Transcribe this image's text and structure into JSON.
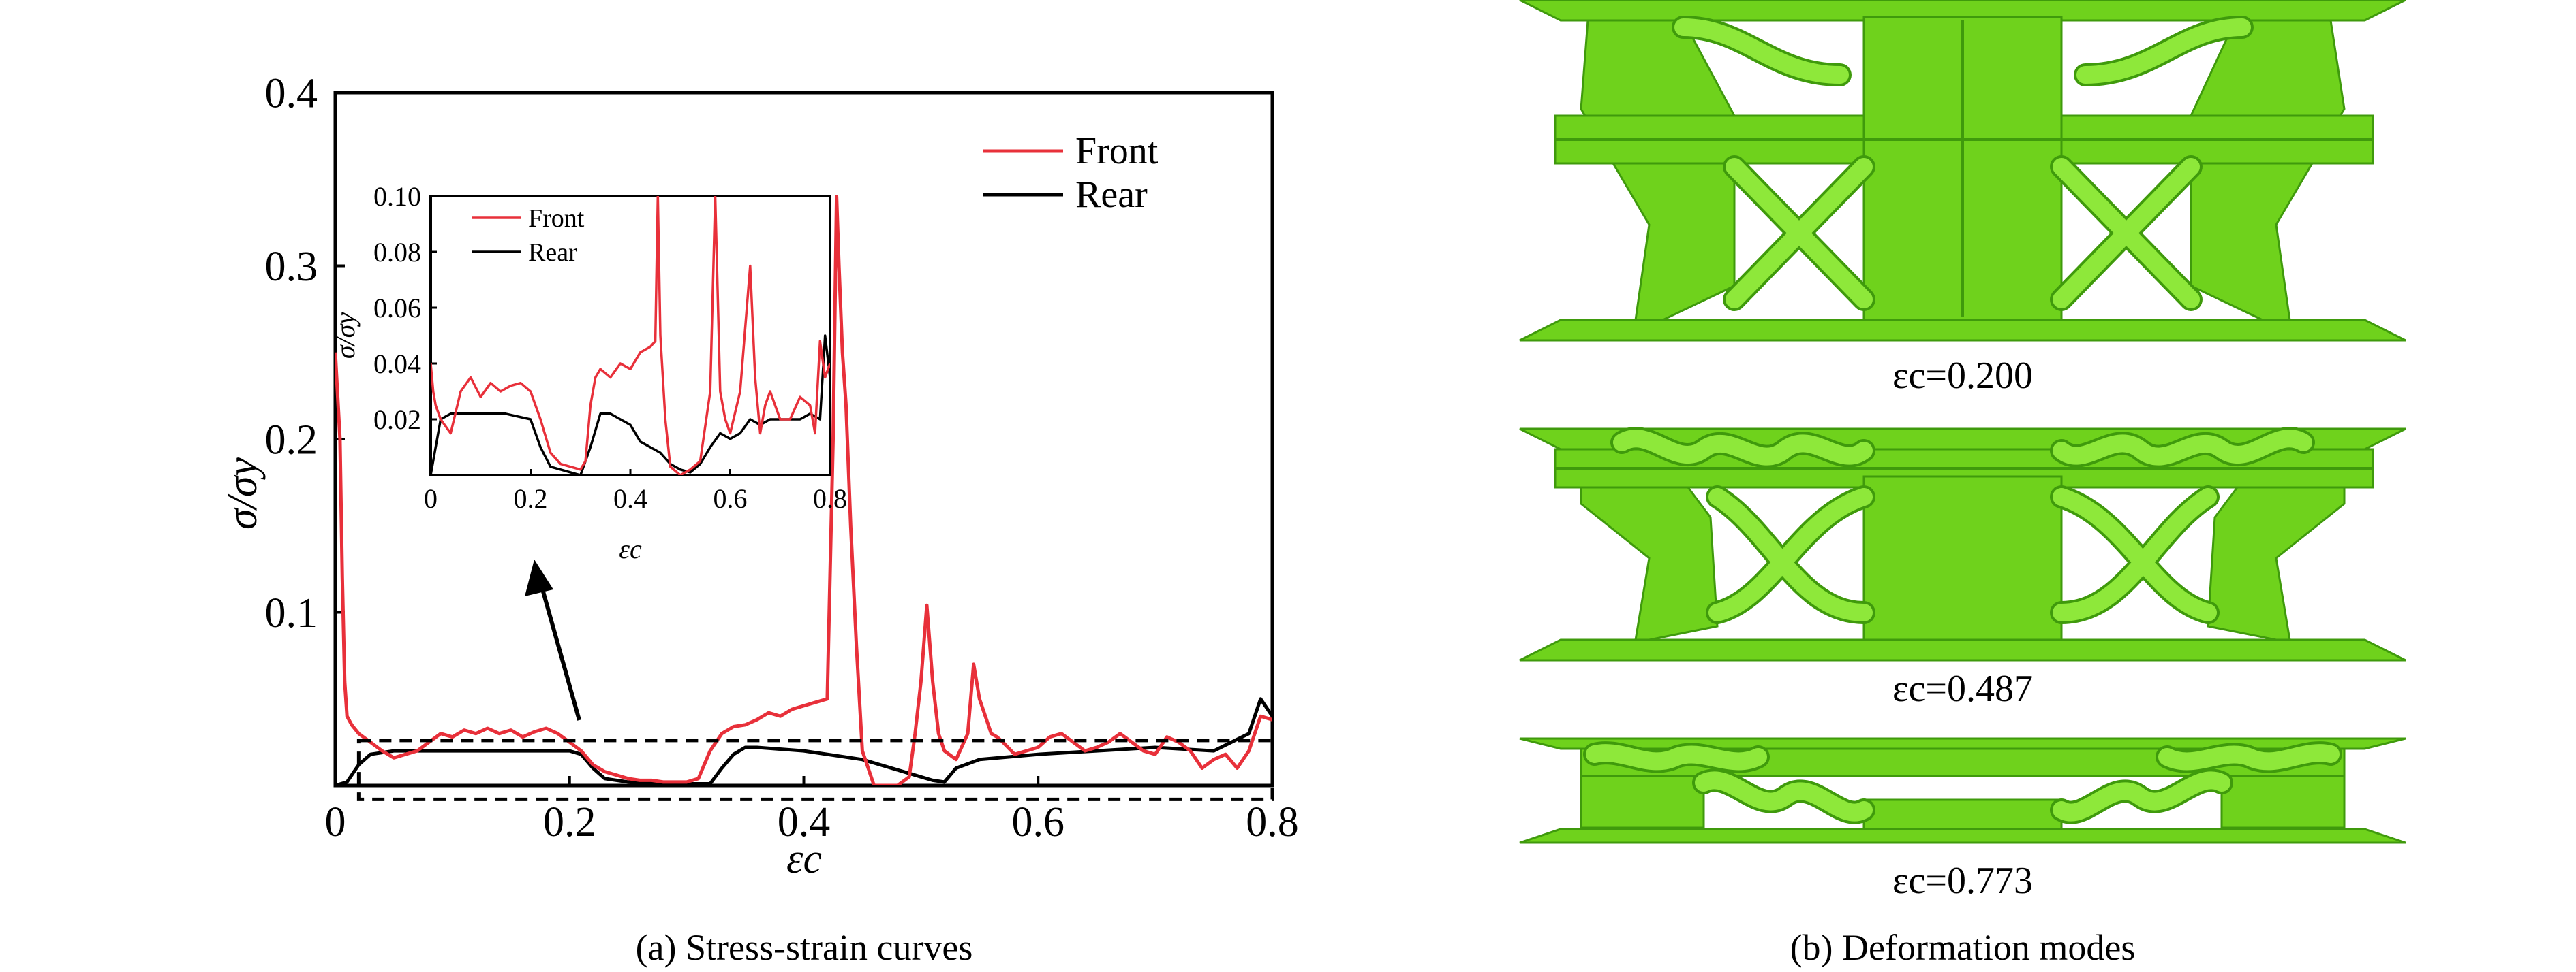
{
  "figure": {
    "caption_a": "(a) Stress-strain curves",
    "caption_b": "(b) Deformation modes"
  },
  "colors": {
    "front": "#e8303a",
    "rear": "#000000",
    "model_fill": "#6fd21c",
    "model_shade": "#3f9a0c",
    "model_light": "#8ee83a"
  },
  "chart_data": [
    {
      "type": "line",
      "title": "",
      "xlabel": "εc",
      "ylabel": "σ/σy",
      "xlim": [
        0,
        0.8
      ],
      "ylim": [
        0,
        0.4
      ],
      "x_ticks": [
        "0",
        "0.2",
        "0.4",
        "0.6",
        "0.8"
      ],
      "y_ticks": [
        "0.1",
        "0.2",
        "0.3",
        "0.4"
      ],
      "legend": {
        "placement": "top-right",
        "entries": [
          "Front",
          "Rear"
        ]
      },
      "grid": false,
      "zoom_box": {
        "x": [
          0.02,
          0.8
        ],
        "y": [
          -0.008,
          0.026
        ]
      },
      "series": [
        {
          "name": "Front",
          "color_key": "front",
          "x": [
            0.0,
            0.004,
            0.006,
            0.008,
            0.01,
            0.014,
            0.02,
            0.03,
            0.04,
            0.05,
            0.06,
            0.07,
            0.08,
            0.09,
            0.1,
            0.11,
            0.12,
            0.13,
            0.14,
            0.15,
            0.16,
            0.17,
            0.18,
            0.19,
            0.2,
            0.21,
            0.22,
            0.23,
            0.24,
            0.25,
            0.26,
            0.27,
            0.28,
            0.29,
            0.3,
            0.31,
            0.32,
            0.33,
            0.335,
            0.34,
            0.35,
            0.36,
            0.37,
            0.38,
            0.39,
            0.4,
            0.41,
            0.42,
            0.425,
            0.428,
            0.43,
            0.433,
            0.436,
            0.44,
            0.445,
            0.45,
            0.455,
            0.46,
            0.47,
            0.48,
            0.49,
            0.495,
            0.5,
            0.505,
            0.51,
            0.515,
            0.52,
            0.53,
            0.54,
            0.545,
            0.55,
            0.56,
            0.565,
            0.57,
            0.58,
            0.59,
            0.6,
            0.61,
            0.62,
            0.63,
            0.64,
            0.65,
            0.66,
            0.67,
            0.68,
            0.69,
            0.7,
            0.71,
            0.72,
            0.73,
            0.74,
            0.75,
            0.76,
            0.77,
            0.78,
            0.79,
            0.8
          ],
          "y": [
            0.25,
            0.2,
            0.12,
            0.06,
            0.04,
            0.035,
            0.03,
            0.025,
            0.02,
            0.016,
            0.018,
            0.02,
            0.025,
            0.03,
            0.028,
            0.032,
            0.03,
            0.033,
            0.03,
            0.032,
            0.028,
            0.031,
            0.033,
            0.03,
            0.025,
            0.02,
            0.012,
            0.008,
            0.006,
            0.004,
            0.003,
            0.003,
            0.002,
            0.002,
            0.002,
            0.004,
            0.02,
            0.03,
            0.032,
            0.034,
            0.035,
            0.038,
            0.042,
            0.04,
            0.044,
            0.046,
            0.048,
            0.05,
            0.2,
            0.34,
            0.3,
            0.25,
            0.22,
            0.15,
            0.08,
            0.02,
            0.01,
            0.0,
            0.0,
            0.0,
            0.005,
            0.03,
            0.06,
            0.104,
            0.06,
            0.03,
            0.02,
            0.015,
            0.03,
            0.07,
            0.05,
            0.03,
            0.028,
            0.025,
            0.018,
            0.02,
            0.022,
            0.028,
            0.03,
            0.025,
            0.02,
            0.022,
            0.025,
            0.03,
            0.025,
            0.02,
            0.018,
            0.028,
            0.025,
            0.02,
            0.01,
            0.015,
            0.018,
            0.01,
            0.02,
            0.04,
            0.038
          ]
        },
        {
          "name": "Rear",
          "color_key": "rear",
          "x": [
            0.0,
            0.01,
            0.02,
            0.03,
            0.05,
            0.1,
            0.15,
            0.2,
            0.21,
            0.22,
            0.23,
            0.25,
            0.3,
            0.32,
            0.33,
            0.34,
            0.35,
            0.36,
            0.4,
            0.45,
            0.5,
            0.51,
            0.52,
            0.53,
            0.55,
            0.6,
            0.65,
            0.7,
            0.75,
            0.78,
            0.79,
            0.8
          ],
          "y": [
            0.0,
            0.002,
            0.012,
            0.018,
            0.02,
            0.02,
            0.02,
            0.02,
            0.018,
            0.01,
            0.004,
            0.002,
            0.001,
            0.001,
            0.01,
            0.018,
            0.022,
            0.022,
            0.02,
            0.015,
            0.005,
            0.003,
            0.002,
            0.01,
            0.015,
            0.018,
            0.02,
            0.022,
            0.02,
            0.03,
            0.05,
            0.04
          ]
        }
      ]
    },
    {
      "type": "line",
      "title": "",
      "xlabel": "εc",
      "ylabel": "σ/σy",
      "xlim": [
        0,
        0.8
      ],
      "ylim": [
        0,
        0.1
      ],
      "x_ticks": [
        "0",
        "0.2",
        "0.4",
        "0.6",
        "0.8"
      ],
      "y_ticks": [
        "0.02",
        "0.04",
        "0.06",
        "0.08",
        "0.10"
      ],
      "legend": {
        "placement": "top-left",
        "entries": [
          "Front",
          "Rear"
        ]
      },
      "grid": false,
      "series": [
        {
          "name": "Front",
          "color_key": "front",
          "x": [
            0.0,
            0.005,
            0.01,
            0.02,
            0.04,
            0.06,
            0.08,
            0.1,
            0.12,
            0.14,
            0.16,
            0.18,
            0.2,
            0.22,
            0.24,
            0.26,
            0.28,
            0.3,
            0.31,
            0.32,
            0.33,
            0.34,
            0.36,
            0.38,
            0.4,
            0.42,
            0.44,
            0.45,
            0.455,
            0.46,
            0.47,
            0.48,
            0.5,
            0.52,
            0.54,
            0.56,
            0.57,
            0.58,
            0.59,
            0.6,
            0.62,
            0.64,
            0.65,
            0.66,
            0.67,
            0.68,
            0.7,
            0.72,
            0.74,
            0.76,
            0.77,
            0.78,
            0.79,
            0.8
          ],
          "y": [
            0.04,
            0.03,
            0.025,
            0.02,
            0.015,
            0.03,
            0.035,
            0.028,
            0.033,
            0.03,
            0.032,
            0.033,
            0.03,
            0.02,
            0.008,
            0.004,
            0.003,
            0.002,
            0.005,
            0.025,
            0.035,
            0.038,
            0.035,
            0.04,
            0.038,
            0.044,
            0.046,
            0.048,
            0.1,
            0.05,
            0.02,
            0.003,
            0.0,
            0.002,
            0.005,
            0.03,
            0.1,
            0.03,
            0.02,
            0.015,
            0.03,
            0.075,
            0.035,
            0.015,
            0.025,
            0.03,
            0.02,
            0.02,
            0.028,
            0.025,
            0.015,
            0.048,
            0.035,
            0.04
          ]
        },
        {
          "name": "Rear",
          "color_key": "rear",
          "x": [
            0.0,
            0.02,
            0.04,
            0.06,
            0.1,
            0.15,
            0.2,
            0.22,
            0.24,
            0.26,
            0.28,
            0.3,
            0.32,
            0.34,
            0.36,
            0.38,
            0.4,
            0.42,
            0.44,
            0.46,
            0.48,
            0.5,
            0.52,
            0.54,
            0.56,
            0.58,
            0.6,
            0.62,
            0.64,
            0.66,
            0.68,
            0.7,
            0.72,
            0.74,
            0.76,
            0.78,
            0.79,
            0.8
          ],
          "y": [
            0.0,
            0.02,
            0.022,
            0.022,
            0.022,
            0.022,
            0.02,
            0.01,
            0.003,
            0.002,
            0.001,
            0.0,
            0.01,
            0.022,
            0.022,
            0.02,
            0.018,
            0.012,
            0.01,
            0.008,
            0.004,
            0.002,
            0.001,
            0.004,
            0.01,
            0.015,
            0.013,
            0.015,
            0.02,
            0.018,
            0.02,
            0.02,
            0.02,
            0.02,
            0.022,
            0.02,
            0.05,
            0.035
          ]
        }
      ]
    }
  ],
  "deformation": {
    "strain_labels": [
      "εc=0.200",
      "εc=0.487",
      "εc=0.773"
    ]
  }
}
